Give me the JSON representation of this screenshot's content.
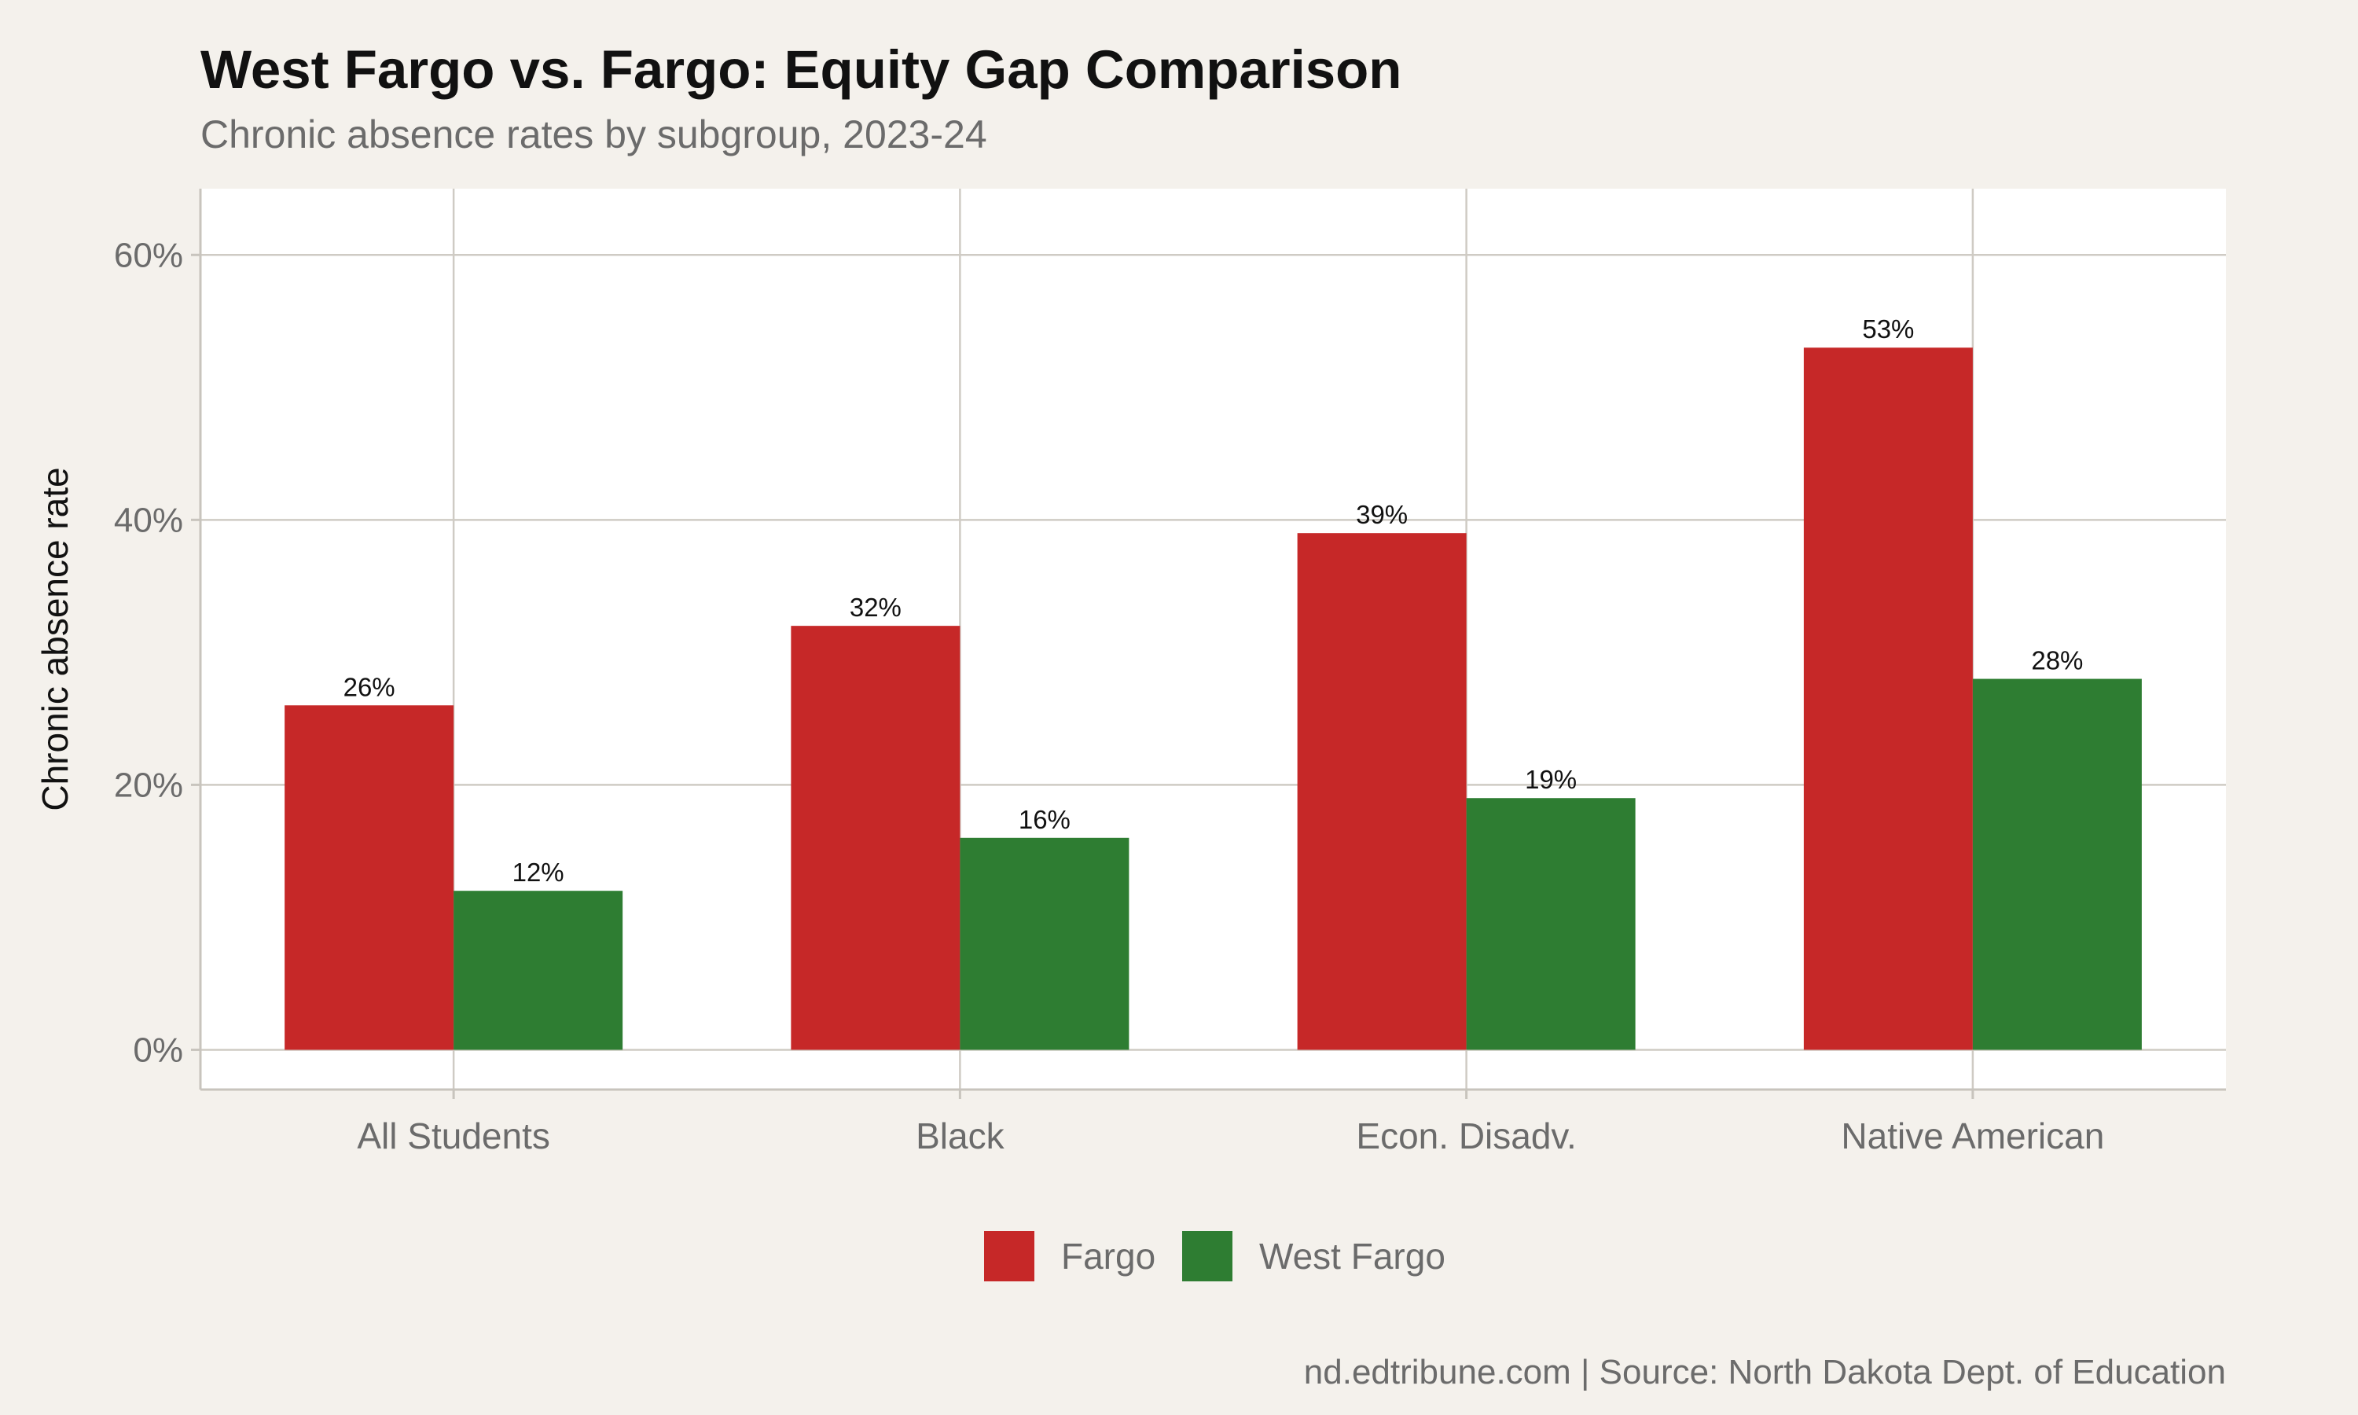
{
  "chart_data": {
    "type": "bar",
    "title": "West Fargo vs. Fargo: Equity Gap Comparison",
    "subtitle": "Chronic absence rates by subgroup, 2023-24",
    "xlabel": "",
    "ylabel": "Chronic absence rate",
    "categories": [
      "All Students",
      "Black",
      "Econ. Disadv.",
      "Native American"
    ],
    "series": [
      {
        "name": "Fargo",
        "color": "#c62828",
        "values": [
          26,
          32,
          39,
          53
        ],
        "labels": [
          "26%",
          "32%",
          "39%",
          "53%"
        ]
      },
      {
        "name": "West Fargo",
        "color": "#2e7d32",
        "values": [
          12,
          16,
          19,
          28
        ],
        "labels": [
          "12%",
          "16%",
          "19%",
          "28%"
        ]
      }
    ],
    "ylim": [
      -3,
      65
    ],
    "yticks": [
      0,
      20,
      40,
      60
    ],
    "ytick_labels": [
      "0%",
      "20%",
      "40%",
      "60%"
    ],
    "grid": true,
    "legend": "bottom",
    "caption": "nd.edtribune.com | Source: North Dakota Dept. of Education"
  }
}
